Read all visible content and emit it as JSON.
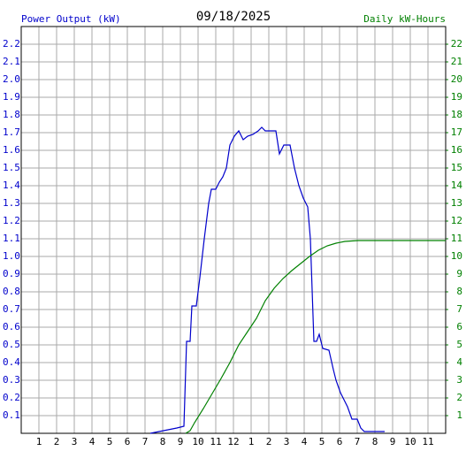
{
  "chart_data": {
    "type": "line",
    "title": "09/18/2025",
    "y_label": "Power Output (kW)",
    "y2_label": "Daily kW-Hours",
    "xlim": [
      0,
      24
    ],
    "ylim": [
      0,
      2.3
    ],
    "y2lim": [
      0,
      23
    ],
    "grid": true,
    "xticks": [
      1,
      2,
      3,
      4,
      5,
      6,
      7,
      8,
      9,
      10,
      11,
      12,
      {
        "value": 13,
        "label": "1"
      },
      {
        "value": 14,
        "label": "2"
      },
      {
        "value": 15,
        "label": "3"
      },
      {
        "value": 16,
        "label": "4"
      },
      {
        "value": 17,
        "label": "5"
      },
      {
        "value": 18,
        "label": "6"
      },
      {
        "value": 19,
        "label": "7"
      },
      {
        "value": 20,
        "label": "8"
      },
      {
        "value": 21,
        "label": "9"
      },
      {
        "value": 22,
        "label": "10"
      },
      {
        "value": 23,
        "label": "11"
      }
    ],
    "yticks": [
      0.1,
      0.2,
      0.3,
      0.4,
      0.5,
      0.6,
      0.7,
      0.8,
      0.9,
      {
        "value": 1,
        "label": "1.0"
      },
      1.1,
      1.2,
      1.3,
      1.4,
      1.5,
      1.6,
      1.7,
      1.8,
      1.9,
      {
        "value": 2,
        "label": "2.0"
      },
      2.1,
      2.2
    ],
    "y2ticks": [
      1,
      2,
      3,
      4,
      5,
      6,
      7,
      8,
      9,
      10,
      11,
      12,
      13,
      14,
      15,
      16,
      17,
      18,
      19,
      20,
      21,
      22
    ],
    "series": [
      {
        "name": "Power Output (kW)",
        "color": "#0000cc",
        "x": [
          7.3,
          7.8,
          8.3,
          8.8,
          9.2,
          9.35,
          9.55,
          9.65,
          9.9,
          10.1,
          10.35,
          10.6,
          10.75,
          11,
          11.2,
          11.4,
          11.6,
          11.8,
          12.05,
          12.3,
          12.55,
          12.8,
          13.1,
          13.4,
          13.6,
          13.8,
          14.4,
          14.6,
          14.85,
          15.2,
          15.45,
          15.7,
          15.95,
          16.2,
          16.35,
          16.55,
          16.7,
          16.85,
          17.05,
          17.4,
          17.65,
          17.8,
          18.05,
          18.2,
          18.45,
          18.7,
          19,
          19.2,
          19.4,
          20.55
        ],
        "values": [
          0,
          0.01,
          0.02,
          0.03,
          0.04,
          0.52,
          0.52,
          0.72,
          0.72,
          0.88,
          1.1,
          1.3,
          1.38,
          1.38,
          1.42,
          1.45,
          1.5,
          1.63,
          1.68,
          1.71,
          1.66,
          1.68,
          1.69,
          1.71,
          1.73,
          1.71,
          1.71,
          1.58,
          1.63,
          1.63,
          1.5,
          1.4,
          1.33,
          1.28,
          1.1,
          0.52,
          0.52,
          0.56,
          0.48,
          0.47,
          0.36,
          0.3,
          0.23,
          0.2,
          0.15,
          0.08,
          0.08,
          0.03,
          0.01,
          0.01
        ]
      },
      {
        "name": "Daily kW-Hours",
        "color": "#008000",
        "axis": "y2",
        "x": [
          9.3,
          9.55,
          9.8,
          10.3,
          10.8,
          11.3,
          11.8,
          12.3,
          12.8,
          13.3,
          13.8,
          14.3,
          14.8,
          15.3,
          15.8,
          16.3,
          16.8,
          17.3,
          17.8,
          18.3,
          19.05,
          24
        ],
        "values": [
          0,
          0.15,
          0.6,
          1.4,
          2.25,
          3.1,
          4,
          5,
          5.75,
          6.5,
          7.5,
          8.2,
          8.75,
          9.2,
          9.6,
          10,
          10.35,
          10.6,
          10.75,
          10.85,
          10.9,
          10.9
        ]
      }
    ]
  }
}
